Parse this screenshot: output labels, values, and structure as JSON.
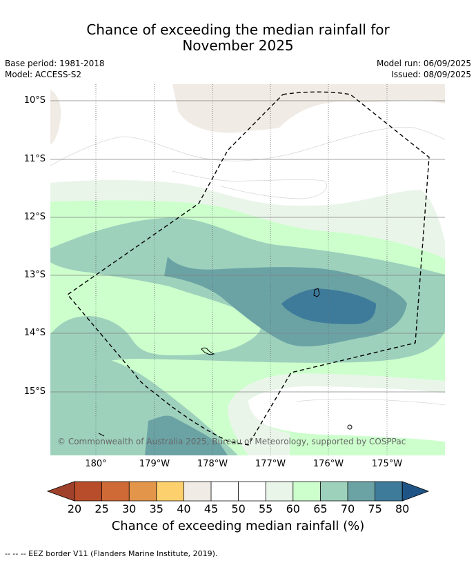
{
  "title_line1": "Chance of exceeding the median rainfall for",
  "title_line2": "November 2025",
  "base_period": "Base period: 1981-2018",
  "model": "Model: ACCESS-S2",
  "model_run": "Model run: 06/09/2025",
  "issued": "Issued: 08/09/2025",
  "copyright": "© Commonwealth of Australia 2025, Bureau of Meteorology, supported by COSPPac",
  "map": {
    "lat_labels": [
      "10°S",
      "11°S",
      "12°S",
      "13°S",
      "14°S",
      "15°S"
    ],
    "lon_labels": [
      "180°",
      "179°W",
      "178°W",
      "177°W",
      "176°W",
      "175°W"
    ],
    "eez_border_style": "dashed",
    "islands": [
      "island-center-east",
      "island-south-west",
      "island-south-east",
      "island-far-south-west"
    ]
  },
  "colorbar": {
    "ticks": [
      "20",
      "25",
      "30",
      "35",
      "40",
      "45",
      "50",
      "55",
      "60",
      "65",
      "70",
      "75",
      "80"
    ],
    "colors": [
      "#a0412b",
      "#b84d2b",
      "#cf6a37",
      "#e3954a",
      "#fdd06e",
      "#f0ebe4",
      "#ffffff",
      "#ffffff",
      "#eaf5ea",
      "#ccffcc",
      "#9dd1bc",
      "#6ba3a5",
      "#3e7b9b",
      "#1f5586"
    ],
    "label": "Chance of exceeding median rainfall (%)"
  },
  "footer": "--  --  -- EEZ border V11 (Flanders Marine Institute, 2019)."
}
